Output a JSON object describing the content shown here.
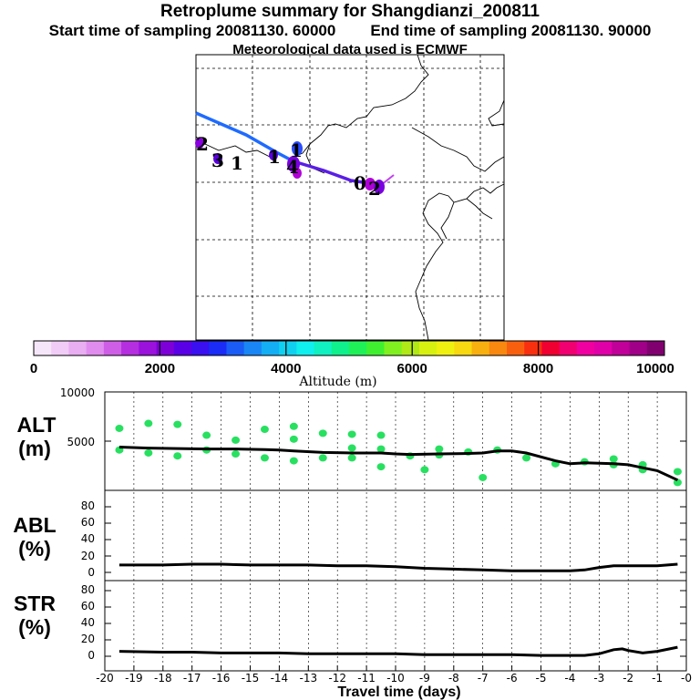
{
  "header": {
    "title": "Retroplume summary for Shangdianzi_200811",
    "start_label": "Start time of sampling 20081130. 60000",
    "end_label": "End time of sampling 20081130. 90000",
    "met_label": "Meteorological data used is ECMWF"
  },
  "map": {
    "trajectory_color_a": "#1e6bff",
    "trajectory_color_b": "#5a1ee6",
    "cluster_labels": [
      "2",
      "3",
      "1",
      "1",
      "1",
      "4",
      "0",
      "2"
    ],
    "marker_colors": [
      "#8a00e0",
      "#5a00e0",
      "#2a4cff",
      "#7a00e0",
      "#b000d8"
    ]
  },
  "colorbar": {
    "colors": [
      "#f6e6fa",
      "#f0ccf6",
      "#e9adf2",
      "#e08cee",
      "#cf5ee6",
      "#b52ee0",
      "#9a12dc",
      "#7d00d8",
      "#5a00e6",
      "#3a10f0",
      "#1a2cf5",
      "#1a5cf5",
      "#1a86f5",
      "#14aef5",
      "#10d0f0",
      "#10eeee",
      "#10f0c0",
      "#10f08c",
      "#20f058",
      "#40f030",
      "#80f020",
      "#b0e818",
      "#d8f010",
      "#f0f010",
      "#f8d810",
      "#f8b010",
      "#f88810",
      "#f86010",
      "#f83010",
      "#f00030",
      "#f00070",
      "#f000a0",
      "#e000a8",
      "#c00098",
      "#a00088",
      "#800070"
    ],
    "ticks": [
      "0",
      "2000",
      "4000",
      "6000",
      "8000",
      "10000"
    ],
    "label": "Altitude (m)"
  },
  "panels": {
    "alt": {
      "label_line1": "ALT",
      "label_line2": "(m)",
      "ticks": [
        "10000",
        "5000"
      ]
    },
    "abl": {
      "label_line1": "ABL",
      "label_line2": "(%)",
      "ticks": [
        "80",
        "60",
        "40",
        "20",
        "0"
      ]
    },
    "str": {
      "label_line1": "STR",
      "label_line2": "(%)",
      "ticks": [
        "80",
        "60",
        "40",
        "20",
        "0"
      ]
    }
  },
  "chart_data": [
    {
      "type": "line",
      "title": "ALT",
      "ylabel": "ALT (m)",
      "xlabel": "Travel time (days)",
      "ylim": [
        0,
        10000
      ],
      "x": [
        -19.5,
        -18.5,
        -17.5,
        -16.5,
        -15.5,
        -14.5,
        -14,
        -13.5,
        -12.5,
        -11.5,
        -10.5,
        -10,
        -9.5,
        -8.5,
        -7.5,
        -7,
        -6.5,
        -6,
        -5.5,
        -4.5,
        -4,
        -3.5,
        -2.5,
        -2,
        -1.5,
        -1,
        -0.3
      ],
      "series": [
        {
          "name": "median altitude",
          "color": "#000000",
          "values": [
            4400,
            4300,
            4250,
            4200,
            4200,
            4150,
            4100,
            4000,
            3850,
            3800,
            3800,
            3700,
            3650,
            3700,
            3750,
            3800,
            4000,
            4000,
            3800,
            3000,
            2700,
            2800,
            2700,
            2600,
            2300,
            2000,
            1050
          ]
        },
        {
          "name": "altitude spread (points)",
          "color": "#28e060",
          "points": [
            [
              -19.5,
              6300
            ],
            [
              -19.5,
              4100
            ],
            [
              -18.5,
              6800
            ],
            [
              -18.5,
              3800
            ],
            [
              -17.5,
              6700
            ],
            [
              -17.5,
              3500
            ],
            [
              -16.5,
              5600
            ],
            [
              -16.5,
              4100
            ],
            [
              -15.5,
              5100
            ],
            [
              -15.5,
              3700
            ],
            [
              -14.5,
              6200
            ],
            [
              -14.5,
              3300
            ],
            [
              -13.5,
              6500
            ],
            [
              -13.5,
              5200
            ],
            [
              -13.5,
              3000
            ],
            [
              -12.5,
              5800
            ],
            [
              -12.5,
              3300
            ],
            [
              -11.5,
              5700
            ],
            [
              -11.5,
              4300
            ],
            [
              -11.5,
              3300
            ],
            [
              -10.5,
              5600
            ],
            [
              -10.5,
              4200
            ],
            [
              -10.5,
              2400
            ],
            [
              -9.5,
              3500
            ],
            [
              -9,
              2100
            ],
            [
              -8.5,
              4200
            ],
            [
              -8.5,
              3600
            ],
            [
              -7.5,
              3900
            ],
            [
              -7,
              1300
            ],
            [
              -6.5,
              4100
            ],
            [
              -5.5,
              3300
            ],
            [
              -4.5,
              2700
            ],
            [
              -3.5,
              2900
            ],
            [
              -2.5,
              3200
            ],
            [
              -2.5,
              2600
            ],
            [
              -1.5,
              2600
            ],
            [
              -1.5,
              2100
            ],
            [
              -0.3,
              1900
            ],
            [
              -0.3,
              800
            ]
          ]
        }
      ]
    },
    {
      "type": "line",
      "title": "ABL",
      "ylabel": "ABL (%)",
      "xlabel": "Travel time (days)",
      "ylim": [
        0,
        90
      ],
      "x": [
        -19.5,
        -18,
        -17,
        -16,
        -15,
        -14,
        -13,
        -12,
        -11,
        -10,
        -9,
        -8,
        -7,
        -6,
        -5,
        -4,
        -3.5,
        -3,
        -2.5,
        -2,
        -1.5,
        -1,
        -0.3
      ],
      "series": [
        {
          "name": "ABL fraction",
          "color": "#000000",
          "values": [
            9,
            9,
            10,
            10,
            9,
            9,
            9,
            8,
            8,
            7,
            5,
            4,
            3,
            2,
            2,
            2,
            3,
            6,
            8,
            8,
            8,
            8,
            10
          ]
        }
      ]
    },
    {
      "type": "line",
      "title": "STR",
      "ylabel": "STR (%)",
      "xlabel": "Travel time (days)",
      "ylim": [
        0,
        90
      ],
      "x": [
        -19.5,
        -18,
        -17,
        -16,
        -15,
        -14,
        -13,
        -12,
        -11,
        -10,
        -9,
        -8,
        -7,
        -6,
        -5,
        -4,
        -3.5,
        -3,
        -2.5,
        -2.2,
        -2,
        -1.5,
        -1,
        -0.3
      ],
      "series": [
        {
          "name": "STR fraction",
          "color": "#000000",
          "values": [
            6,
            5,
            5,
            4,
            4,
            4,
            3,
            3,
            3,
            3,
            2,
            2,
            2,
            2,
            1,
            1,
            1,
            3,
            8,
            9,
            7,
            4,
            6,
            11
          ]
        }
      ]
    }
  ],
  "xaxis": {
    "ticks": [
      "-20",
      "-19",
      "-18",
      "-17",
      "-16",
      "-15",
      "-14",
      "-13",
      "-12",
      "-11",
      "-10",
      "-9",
      "-8",
      "-7",
      "-6",
      "-5",
      "-4",
      "-3",
      "-2",
      "-1",
      "-0"
    ],
    "label": "Travel time (days)"
  }
}
